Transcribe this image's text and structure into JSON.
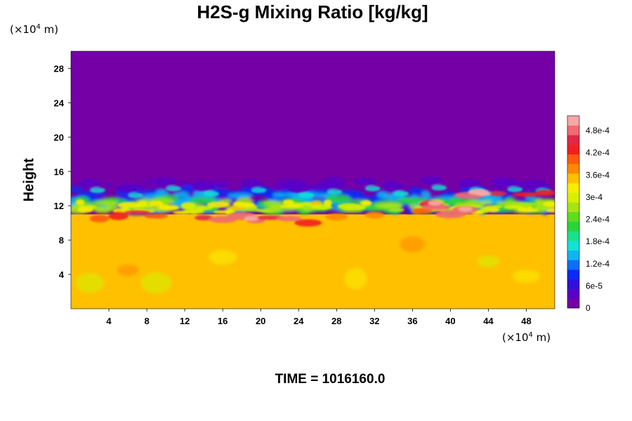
{
  "chart_data": {
    "type": "heatmap",
    "title": "H2S-g Mixing Ratio [kg/kg]",
    "ylabel": "Height",
    "x_unit": {
      "prefix": "(×10",
      "exp": "4",
      "suffix": " m)"
    },
    "y_unit": {
      "prefix": "(×10",
      "exp": "4",
      "suffix": " m)"
    },
    "xlim": [
      0,
      51
    ],
    "ylim": [
      0,
      30
    ],
    "x_ticks": [
      "4",
      "8",
      "12",
      "16",
      "20",
      "24",
      "28",
      "32",
      "36",
      "40",
      "44",
      "48"
    ],
    "y_ticks": [
      "4",
      "8",
      "12",
      "16",
      "20",
      "24",
      "28"
    ],
    "colorbar": {
      "min": 0,
      "max": 0.00052,
      "labels": [
        "0",
        "6e-5",
        "1.2e-4",
        "1.8e-4",
        "2.4e-4",
        "3e-4",
        "3.6e-4",
        "4.2e-4",
        "4.8e-4"
      ],
      "label_values": [
        0,
        6e-05,
        0.00012,
        0.00018,
        0.00024,
        0.0003,
        0.00036,
        0.00042,
        0.00048
      ],
      "colors": [
        "#7400a6",
        "#5a00c8",
        "#2f10dc",
        "#0a2af5",
        "#0a70f5",
        "#10b4f0",
        "#14e2d6",
        "#1ae08a",
        "#2ad43a",
        "#60dc1e",
        "#a6e414",
        "#d6f000",
        "#f8ec00",
        "#ffc000",
        "#ff8a00",
        "#ff5a10",
        "#f02020",
        "#e02848",
        "#f06a70",
        "#f8a6a6"
      ]
    },
    "regions": {
      "upper_value": 0,
      "lower_value": 0.00035,
      "interface_height": 11,
      "mixing_layer_top": 15
    },
    "time_label": "TIME = 1016160.0"
  }
}
